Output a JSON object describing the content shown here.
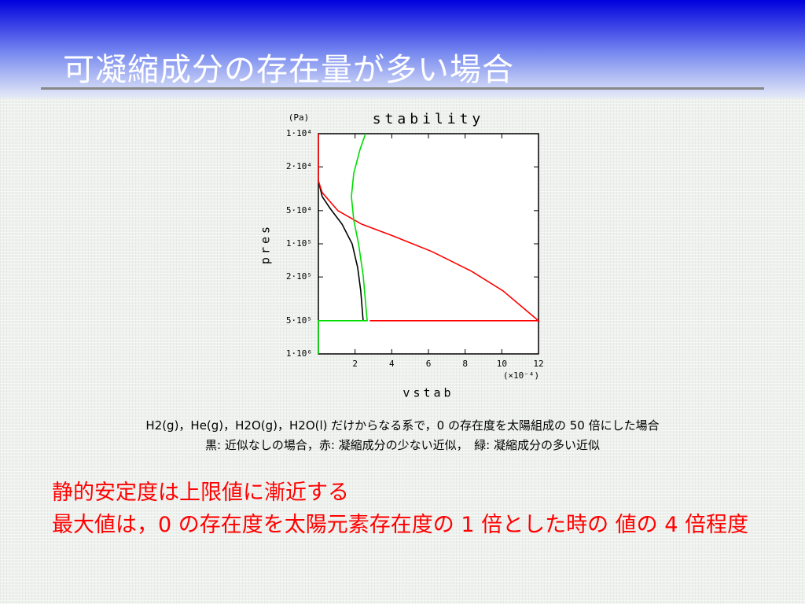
{
  "title": "可凝縮成分の存在量が多い場合",
  "chart_data": {
    "type": "line",
    "title": "stability",
    "xlabel": "vstab",
    "ylabel": "pres",
    "y_unit": "(Pa)",
    "x_multiplier": "(×10⁻⁴)",
    "xlim": [
      0,
      12
    ],
    "xticks": [
      2,
      4,
      6,
      8,
      10,
      12
    ],
    "ylim": [
      10000,
      1000000
    ],
    "ylog": true,
    "y_reversed": true,
    "yticks": [
      {
        "value": 10000,
        "label": "1·10⁴"
      },
      {
        "value": 20000,
        "label": "2·10⁴"
      },
      {
        "value": 50000,
        "label": "5·10⁴"
      },
      {
        "value": 100000,
        "label": "1·10⁵"
      },
      {
        "value": 200000,
        "label": "2·10⁵"
      },
      {
        "value": 500000,
        "label": "5·10⁵"
      },
      {
        "value": 1000000,
        "label": "1·10⁶"
      }
    ],
    "series": [
      {
        "color": "#000000",
        "x": [
          0,
          0.21,
          0.64,
          1.29,
          1.84,
          2.14,
          2.31,
          2.44
        ],
        "values": [
          26800,
          37300,
          47700,
          66300,
          100000,
          164000,
          268000,
          500000
        ]
      },
      {
        "color": "#ff0000",
        "x": [
          0,
          0,
          0.21,
          1.07,
          2.36,
          4.07,
          6.21,
          8.36,
          10.07,
          12,
          2.8
        ],
        "values": [
          10000,
          26800,
          34300,
          50100,
          66300,
          84900,
          118000,
          178000,
          268000,
          500000,
          500000
        ]
      },
      {
        "color": "#00dd00",
        "x": [
          2.57,
          2.27,
          1.93,
          1.8,
          1.93,
          2.19,
          2.44,
          2.66,
          0,
          0
        ],
        "values": [
          10000,
          13900,
          22800,
          37300,
          61000,
          100000,
          193000,
          500000,
          500000,
          1000000
        ]
      }
    ]
  },
  "caption": [
    "H2(g)，He(g)，H2O(g)，H2O(l) だけからなる系で，0 の存在度を太陽組成の 50 倍にした場合",
    "黒: 近似なしの場合，赤: 凝縮成分の少ない近似，　緑: 凝縮成分の多い近似"
  ],
  "notes": [
    "静的安定度は上限値に漸近する",
    "最大値は，0 の存在度を太陽元素存在度の 1 倍とした時の 値の 4 倍程度"
  ]
}
